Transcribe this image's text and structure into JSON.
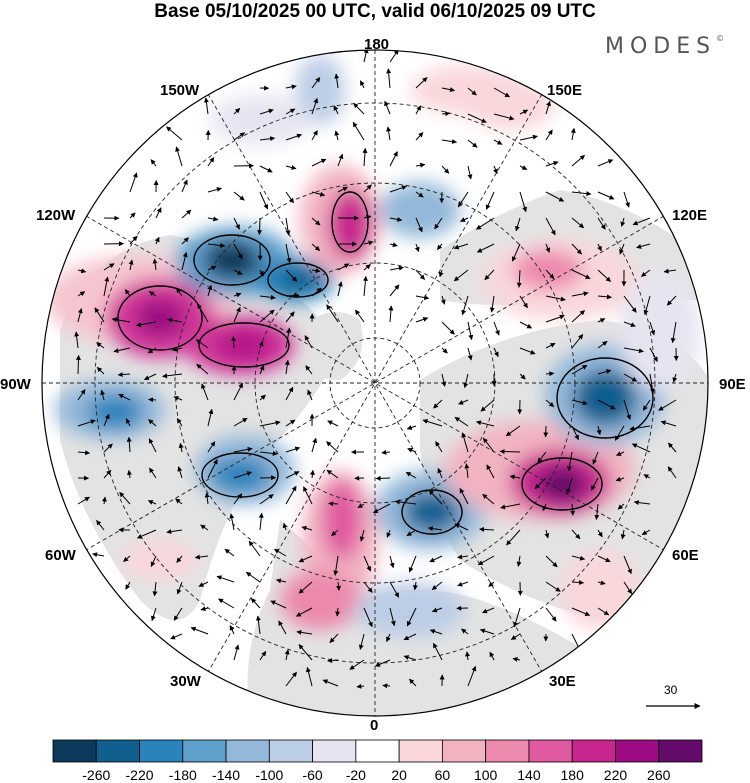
{
  "title": "Base 05/10/2025 00 UTC, valid 06/10/2025 09 UTC",
  "logo": "MODES",
  "logo_mark": "©",
  "longitude_labels": {
    "lon_180": "180",
    "lon_150w": "150W",
    "lon_150e": "150E",
    "lon_120w": "120W",
    "lon_120e": "120E",
    "lon_90w": "90W",
    "lon_90e": "90E",
    "lon_60w": "60W",
    "lon_60e": "60E",
    "lon_30w": "30W",
    "lon_30e": "30E",
    "lon_0": "0"
  },
  "reference_vector": {
    "label": "30"
  },
  "colorbar": {
    "labels": [
      "-260",
      "-220",
      "-180",
      "-140",
      "-100",
      "-60",
      "-20",
      "20",
      "60",
      "100",
      "140",
      "180",
      "220",
      "260"
    ],
    "colors": [
      "#0b3a5c",
      "#115f8f",
      "#2a83bb",
      "#5f9fcb",
      "#93b8d9",
      "#bccde6",
      "#e6e4f1",
      "#ffffff",
      "#f9d7db",
      "#f2b3c1",
      "#ec89ad",
      "#e05aa0",
      "#c8268f",
      "#9c0b81",
      "#640a6b"
    ]
  },
  "colors": {
    "land": "#e5e5e5",
    "ocean": "#ffffff"
  }
}
